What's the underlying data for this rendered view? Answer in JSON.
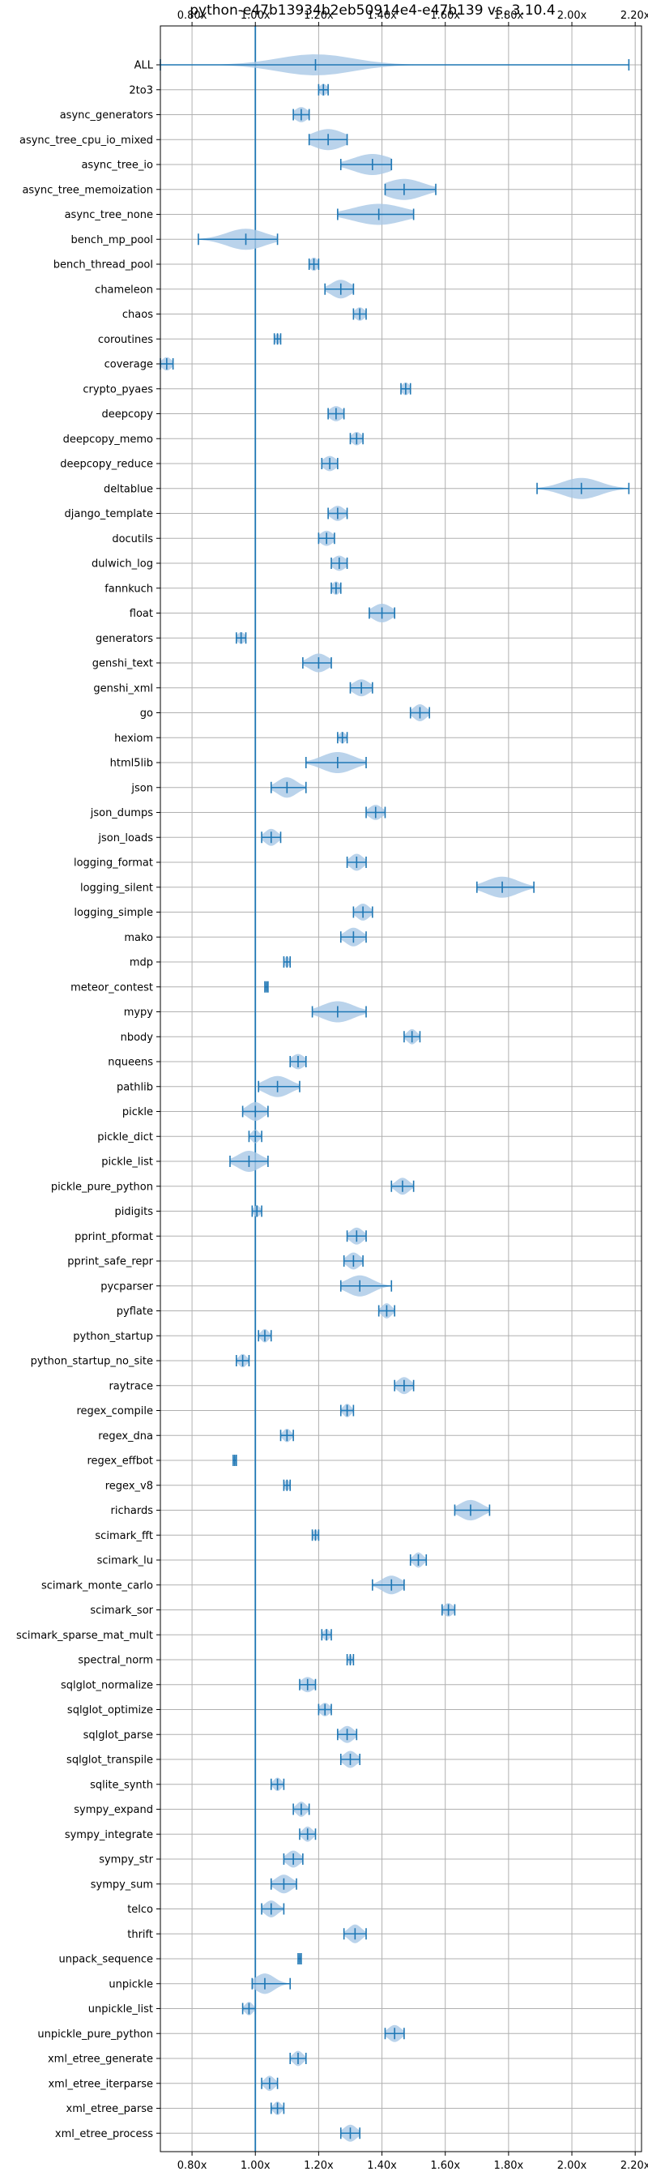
{
  "chart_data": {
    "type": "violin",
    "title": "python-e47b13934b2eb50914e4-e47b139 vs. 3.10.4",
    "xlabel": "",
    "ylabel": "",
    "xlim": [
      0.7,
      2.22
    ],
    "x_ticks": [
      0.8,
      1.0,
      1.2,
      1.4,
      1.6,
      1.8,
      2.0,
      2.2
    ],
    "x_tick_labels": [
      "0.80x",
      "1.00x",
      "1.20x",
      "1.40x",
      "1.60x",
      "1.80x",
      "2.00x",
      "2.20x"
    ],
    "reference_line": 1.0,
    "grid": true,
    "colors": {
      "violin": "#a9c8e6",
      "line": "#1f77b4",
      "grid": "#b0b0b0"
    },
    "benchmarks": [
      {
        "name": "ALL",
        "min": 0.7,
        "max": 2.18,
        "median": 1.19,
        "width": 0.07,
        "spread": 0.12
      },
      {
        "name": "2to3",
        "min": 1.2,
        "max": 1.23,
        "median": 1.215,
        "width": 0.015,
        "spread": 0.012
      },
      {
        "name": "async_generators",
        "min": 1.12,
        "max": 1.17,
        "median": 1.145,
        "width": 0.025,
        "spread": 0.02
      },
      {
        "name": "async_tree_cpu_io_mixed",
        "min": 1.17,
        "max": 1.29,
        "median": 1.23,
        "width": 0.05,
        "spread": 0.05
      },
      {
        "name": "async_tree_io",
        "min": 1.27,
        "max": 1.43,
        "median": 1.37,
        "width": 0.05,
        "spread": 0.06
      },
      {
        "name": "async_tree_memoization",
        "min": 1.41,
        "max": 1.57,
        "median": 1.47,
        "width": 0.07,
        "spread": 0.06
      },
      {
        "name": "async_tree_none",
        "min": 1.26,
        "max": 1.5,
        "median": 1.39,
        "width": 0.08,
        "spread": 0.08
      },
      {
        "name": "bench_mp_pool",
        "min": 0.82,
        "max": 1.07,
        "median": 0.97,
        "width": 0.07,
        "spread": 0.06
      },
      {
        "name": "bench_thread_pool",
        "min": 1.17,
        "max": 1.2,
        "median": 1.185,
        "width": 0.02,
        "spread": 0.012
      },
      {
        "name": "chameleon",
        "min": 1.22,
        "max": 1.31,
        "median": 1.27,
        "width": 0.035,
        "spread": 0.03
      },
      {
        "name": "chaos",
        "min": 1.31,
        "max": 1.35,
        "median": 1.33,
        "width": 0.02,
        "spread": 0.015
      },
      {
        "name": "coroutines",
        "min": 1.06,
        "max": 1.08,
        "median": 1.07,
        "width": 0.012,
        "spread": 0.008
      },
      {
        "name": "coverage",
        "min": 0.7,
        "max": 0.74,
        "median": 0.72,
        "width": 0.02,
        "spread": 0.015
      },
      {
        "name": "crypto_pyaes",
        "min": 1.46,
        "max": 1.49,
        "median": 1.475,
        "width": 0.018,
        "spread": 0.012
      },
      {
        "name": "deepcopy",
        "min": 1.23,
        "max": 1.28,
        "median": 1.255,
        "width": 0.025,
        "spread": 0.02
      },
      {
        "name": "deepcopy_memo",
        "min": 1.3,
        "max": 1.34,
        "median": 1.32,
        "width": 0.02,
        "spread": 0.015
      },
      {
        "name": "deepcopy_reduce",
        "min": 1.21,
        "max": 1.26,
        "median": 1.235,
        "width": 0.025,
        "spread": 0.02
      },
      {
        "name": "deltablue",
        "min": 1.89,
        "max": 2.18,
        "median": 2.03,
        "width": 0.06,
        "spread": 0.06
      },
      {
        "name": "django_template",
        "min": 1.23,
        "max": 1.29,
        "median": 1.26,
        "width": 0.025,
        "spread": 0.02
      },
      {
        "name": "docutils",
        "min": 1.2,
        "max": 1.25,
        "median": 1.225,
        "width": 0.025,
        "spread": 0.02
      },
      {
        "name": "dulwich_log",
        "min": 1.24,
        "max": 1.29,
        "median": 1.265,
        "width": 0.025,
        "spread": 0.02
      },
      {
        "name": "fannkuch",
        "min": 1.24,
        "max": 1.27,
        "median": 1.255,
        "width": 0.02,
        "spread": 0.012
      },
      {
        "name": "float",
        "min": 1.36,
        "max": 1.44,
        "median": 1.4,
        "width": 0.035,
        "spread": 0.03
      },
      {
        "name": "generators",
        "min": 0.94,
        "max": 0.97,
        "median": 0.955,
        "width": 0.015,
        "spread": 0.012
      },
      {
        "name": "genshi_text",
        "min": 1.15,
        "max": 1.24,
        "median": 1.2,
        "width": 0.035,
        "spread": 0.03
      },
      {
        "name": "genshi_xml",
        "min": 1.3,
        "max": 1.37,
        "median": 1.335,
        "width": 0.03,
        "spread": 0.025
      },
      {
        "name": "go",
        "min": 1.49,
        "max": 1.55,
        "median": 1.52,
        "width": 0.03,
        "spread": 0.02
      },
      {
        "name": "hexiom",
        "min": 1.26,
        "max": 1.29,
        "median": 1.275,
        "width": 0.015,
        "spread": 0.01
      },
      {
        "name": "html5lib",
        "min": 1.16,
        "max": 1.35,
        "median": 1.26,
        "width": 0.06,
        "spread": 0.05
      },
      {
        "name": "json",
        "min": 1.05,
        "max": 1.16,
        "median": 1.1,
        "width": 0.04,
        "spread": 0.03
      },
      {
        "name": "json_dumps",
        "min": 1.35,
        "max": 1.41,
        "median": 1.38,
        "width": 0.025,
        "spread": 0.02
      },
      {
        "name": "json_loads",
        "min": 1.02,
        "max": 1.08,
        "median": 1.05,
        "width": 0.03,
        "spread": 0.02
      },
      {
        "name": "logging_format",
        "min": 1.29,
        "max": 1.35,
        "median": 1.32,
        "width": 0.03,
        "spread": 0.02
      },
      {
        "name": "logging_silent",
        "min": 1.7,
        "max": 1.88,
        "median": 1.78,
        "width": 0.06,
        "spread": 0.05
      },
      {
        "name": "logging_simple",
        "min": 1.31,
        "max": 1.37,
        "median": 1.34,
        "width": 0.03,
        "spread": 0.02
      },
      {
        "name": "mako",
        "min": 1.27,
        "max": 1.35,
        "median": 1.31,
        "width": 0.035,
        "spread": 0.025
      },
      {
        "name": "mdp",
        "min": 1.09,
        "max": 1.11,
        "median": 1.1,
        "width": 0.012,
        "spread": 0.008
      },
      {
        "name": "meteor_contest",
        "min": 1.03,
        "max": 1.04,
        "median": 1.035,
        "width": 0.008,
        "spread": 0.005
      },
      {
        "name": "mypy",
        "min": 1.18,
        "max": 1.35,
        "median": 1.26,
        "width": 0.05,
        "spread": 0.05
      },
      {
        "name": "nbody",
        "min": 1.47,
        "max": 1.52,
        "median": 1.495,
        "width": 0.025,
        "spread": 0.015
      },
      {
        "name": "nqueens",
        "min": 1.11,
        "max": 1.16,
        "median": 1.135,
        "width": 0.025,
        "spread": 0.02
      },
      {
        "name": "pathlib",
        "min": 1.01,
        "max": 1.14,
        "median": 1.07,
        "width": 0.045,
        "spread": 0.04
      },
      {
        "name": "pickle",
        "min": 0.96,
        "max": 1.04,
        "median": 1.0,
        "width": 0.035,
        "spread": 0.025
      },
      {
        "name": "pickle_dict",
        "min": 0.98,
        "max": 1.02,
        "median": 1.0,
        "width": 0.02,
        "spread": 0.012
      },
      {
        "name": "pickle_list",
        "min": 0.92,
        "max": 1.04,
        "median": 0.98,
        "width": 0.045,
        "spread": 0.035
      },
      {
        "name": "pickle_pure_python",
        "min": 1.43,
        "max": 1.5,
        "median": 1.465,
        "width": 0.03,
        "spread": 0.02
      },
      {
        "name": "pidigits",
        "min": 0.99,
        "max": 1.02,
        "median": 1.005,
        "width": 0.015,
        "spread": 0.01
      },
      {
        "name": "pprint_pformat",
        "min": 1.29,
        "max": 1.35,
        "median": 1.32,
        "width": 0.03,
        "spread": 0.02
      },
      {
        "name": "pprint_safe_repr",
        "min": 1.28,
        "max": 1.34,
        "median": 1.31,
        "width": 0.03,
        "spread": 0.02
      },
      {
        "name": "pycparser",
        "min": 1.27,
        "max": 1.43,
        "median": 1.33,
        "width": 0.05,
        "spread": 0.04
      },
      {
        "name": "pyflate",
        "min": 1.39,
        "max": 1.44,
        "median": 1.415,
        "width": 0.025,
        "spread": 0.015
      },
      {
        "name": "python_startup",
        "min": 1.01,
        "max": 1.05,
        "median": 1.03,
        "width": 0.02,
        "spread": 0.012
      },
      {
        "name": "python_startup_no_site",
        "min": 0.94,
        "max": 0.98,
        "median": 0.96,
        "width": 0.02,
        "spread": 0.012
      },
      {
        "name": "raytrace",
        "min": 1.44,
        "max": 1.5,
        "median": 1.47,
        "width": 0.03,
        "spread": 0.02
      },
      {
        "name": "regex_compile",
        "min": 1.27,
        "max": 1.31,
        "median": 1.29,
        "width": 0.02,
        "spread": 0.012
      },
      {
        "name": "regex_dna",
        "min": 1.08,
        "max": 1.12,
        "median": 1.1,
        "width": 0.02,
        "spread": 0.012
      },
      {
        "name": "regex_effbot",
        "min": 0.93,
        "max": 0.94,
        "median": 0.935,
        "width": 0.008,
        "spread": 0.005
      },
      {
        "name": "regex_v8",
        "min": 1.09,
        "max": 1.11,
        "median": 1.1,
        "width": 0.012,
        "spread": 0.008
      },
      {
        "name": "richards",
        "min": 1.63,
        "max": 1.74,
        "median": 1.68,
        "width": 0.04,
        "spread": 0.035
      },
      {
        "name": "scimark_fft",
        "min": 1.18,
        "max": 1.2,
        "median": 1.19,
        "width": 0.012,
        "spread": 0.008
      },
      {
        "name": "scimark_lu",
        "min": 1.49,
        "max": 1.54,
        "median": 1.515,
        "width": 0.025,
        "spread": 0.015
      },
      {
        "name": "scimark_monte_carlo",
        "min": 1.37,
        "max": 1.47,
        "median": 1.43,
        "width": 0.035,
        "spread": 0.03
      },
      {
        "name": "scimark_sor",
        "min": 1.59,
        "max": 1.63,
        "median": 1.61,
        "width": 0.02,
        "spread": 0.015
      },
      {
        "name": "scimark_sparse_mat_mult",
        "min": 1.21,
        "max": 1.24,
        "median": 1.225,
        "width": 0.015,
        "spread": 0.01
      },
      {
        "name": "spectral_norm",
        "min": 1.29,
        "max": 1.31,
        "median": 1.3,
        "width": 0.01,
        "spread": 0.006
      },
      {
        "name": "sqlglot_normalize",
        "min": 1.14,
        "max": 1.19,
        "median": 1.165,
        "width": 0.025,
        "spread": 0.02
      },
      {
        "name": "sqlglot_optimize",
        "min": 1.2,
        "max": 1.24,
        "median": 1.22,
        "width": 0.02,
        "spread": 0.015
      },
      {
        "name": "sqlglot_parse",
        "min": 1.26,
        "max": 1.32,
        "median": 1.29,
        "width": 0.03,
        "spread": 0.02
      },
      {
        "name": "sqlglot_transpile",
        "min": 1.27,
        "max": 1.33,
        "median": 1.3,
        "width": 0.03,
        "spread": 0.02
      },
      {
        "name": "sqlite_synth",
        "min": 1.05,
        "max": 1.09,
        "median": 1.07,
        "width": 0.02,
        "spread": 0.012
      },
      {
        "name": "sympy_expand",
        "min": 1.12,
        "max": 1.17,
        "median": 1.145,
        "width": 0.025,
        "spread": 0.015
      },
      {
        "name": "sympy_integrate",
        "min": 1.14,
        "max": 1.19,
        "median": 1.165,
        "width": 0.025,
        "spread": 0.015
      },
      {
        "name": "sympy_str",
        "min": 1.09,
        "max": 1.15,
        "median": 1.12,
        "width": 0.03,
        "spread": 0.02
      },
      {
        "name": "sympy_sum",
        "min": 1.05,
        "max": 1.13,
        "median": 1.09,
        "width": 0.035,
        "spread": 0.025
      },
      {
        "name": "telco",
        "min": 1.02,
        "max": 1.09,
        "median": 1.05,
        "width": 0.03,
        "spread": 0.02
      },
      {
        "name": "thrift",
        "min": 1.28,
        "max": 1.35,
        "median": 1.315,
        "width": 0.035,
        "spread": 0.02
      },
      {
        "name": "unpack_sequence",
        "min": 1.135,
        "max": 1.145,
        "median": 1.14,
        "width": 0.006,
        "spread": 0.004
      },
      {
        "name": "unpickle",
        "min": 0.99,
        "max": 1.11,
        "median": 1.03,
        "width": 0.04,
        "spread": 0.03
      },
      {
        "name": "unpickle_list",
        "min": 0.96,
        "max": 1.0,
        "median": 0.98,
        "width": 0.02,
        "spread": 0.012
      },
      {
        "name": "unpickle_pure_python",
        "min": 1.41,
        "max": 1.47,
        "median": 1.44,
        "width": 0.03,
        "spread": 0.02
      },
      {
        "name": "xml_etree_generate",
        "min": 1.11,
        "max": 1.16,
        "median": 1.135,
        "width": 0.025,
        "spread": 0.015
      },
      {
        "name": "xml_etree_iterparse",
        "min": 1.02,
        "max": 1.07,
        "median": 1.045,
        "width": 0.025,
        "spread": 0.015
      },
      {
        "name": "xml_etree_parse",
        "min": 1.05,
        "max": 1.09,
        "median": 1.07,
        "width": 0.02,
        "spread": 0.012
      },
      {
        "name": "xml_etree_process",
        "min": 1.27,
        "max": 1.33,
        "median": 1.3,
        "width": 0.03,
        "spread": 0.02
      }
    ]
  }
}
